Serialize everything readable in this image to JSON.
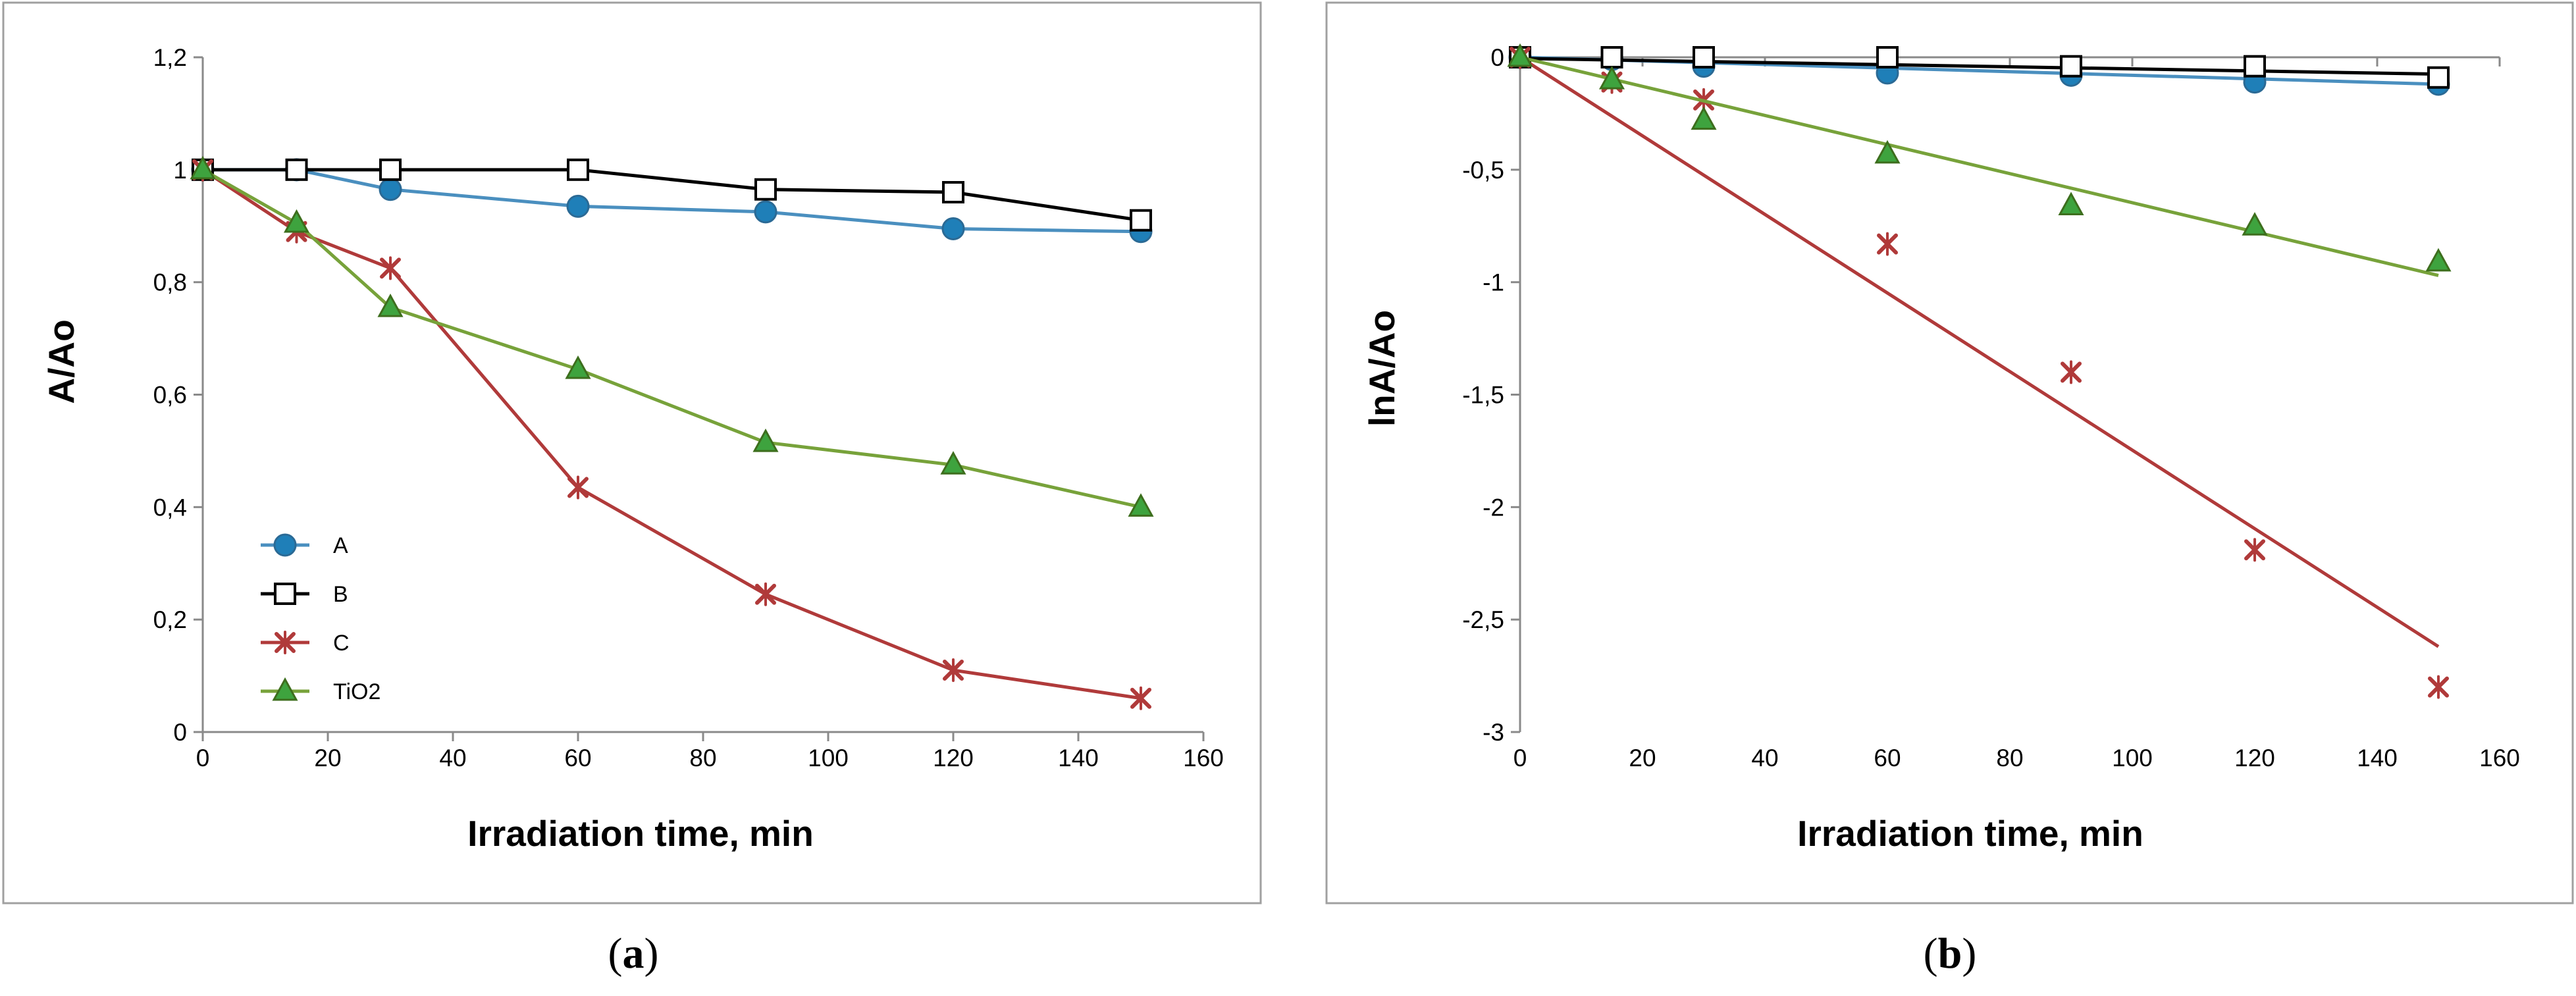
{
  "colors": {
    "A": "#4a8fbf",
    "A_fill": "#1f7fb8",
    "B": "#000000",
    "C": "#b03a3a",
    "TiO2_line": "#77a23a",
    "TiO2_fill": "#3ea33e",
    "axis": "#8a8a8a",
    "frame": "#a0a0a0"
  },
  "panels": {
    "a": {
      "open": "(",
      "letter": "a",
      "close": ")"
    },
    "b": {
      "open": "(",
      "letter": "b",
      "close": ")"
    }
  },
  "chart_data": [
    {
      "id": "a",
      "type": "line",
      "title": "",
      "xlabel": "Irradiation time, min",
      "ylabel": "A/Ao",
      "xlim": [
        0,
        160
      ],
      "ylim": [
        0,
        1.2
      ],
      "xticks": [
        "0",
        "20",
        "40",
        "60",
        "80",
        "100",
        "120",
        "140",
        "160"
      ],
      "yticks": [
        "0",
        "0,2",
        "0,4",
        "0,6",
        "0,8",
        "1",
        "1,2"
      ],
      "grid": false,
      "legend_position": "bottom-left",
      "x": [
        0,
        15,
        30,
        60,
        90,
        120,
        150
      ],
      "series": [
        {
          "name": "A",
          "marker": "circle",
          "values": [
            1.0,
            1.0,
            0.965,
            0.935,
            0.925,
            0.895,
            0.89
          ]
        },
        {
          "name": "B",
          "marker": "open-square",
          "values": [
            1.0,
            1.0,
            1.0,
            1.0,
            0.965,
            0.96,
            0.91
          ]
        },
        {
          "name": "C",
          "marker": "star",
          "values": [
            1.0,
            0.89,
            0.825,
            0.435,
            0.245,
            0.11,
            0.06
          ]
        },
        {
          "name": "TiO2",
          "marker": "triangle",
          "values": [
            1.0,
            0.905,
            0.755,
            0.645,
            0.515,
            0.475,
            0.4
          ]
        }
      ]
    },
    {
      "id": "b",
      "type": "scatter",
      "title": "",
      "xlabel": "Irradiation time, min",
      "ylabel": "lnA/Ao",
      "xlim": [
        0,
        160
      ],
      "ylim": [
        -3,
        0
      ],
      "xticks": [
        "0",
        "20",
        "40",
        "60",
        "80",
        "100",
        "120",
        "140",
        "160"
      ],
      "yticks": [
        "0",
        "-0,5",
        "-1",
        "-1,5",
        "-2",
        "-2,5",
        "-3"
      ],
      "grid": false,
      "x": [
        0,
        15,
        30,
        60,
        90,
        120,
        150
      ],
      "series": [
        {
          "name": "A",
          "marker": "circle",
          "values": [
            0,
            -0.01,
            -0.04,
            -0.07,
            -0.08,
            -0.11,
            -0.12
          ],
          "trendline": [
            0,
            -0.12
          ]
        },
        {
          "name": "B",
          "marker": "open-square",
          "values": [
            0,
            0,
            0,
            0,
            -0.04,
            -0.04,
            -0.09
          ],
          "trendline": [
            -0.005,
            -0.075
          ]
        },
        {
          "name": "C",
          "marker": "star",
          "values": [
            0,
            -0.11,
            -0.19,
            -0.83,
            -1.4,
            -2.19,
            -2.8
          ],
          "trendline": [
            0,
            -2.62
          ]
        },
        {
          "name": "TiO2",
          "marker": "triangle",
          "values": [
            0,
            -0.1,
            -0.28,
            -0.43,
            -0.66,
            -0.75,
            -0.91
          ],
          "trendline": [
            0,
            -0.97
          ]
        }
      ]
    }
  ]
}
